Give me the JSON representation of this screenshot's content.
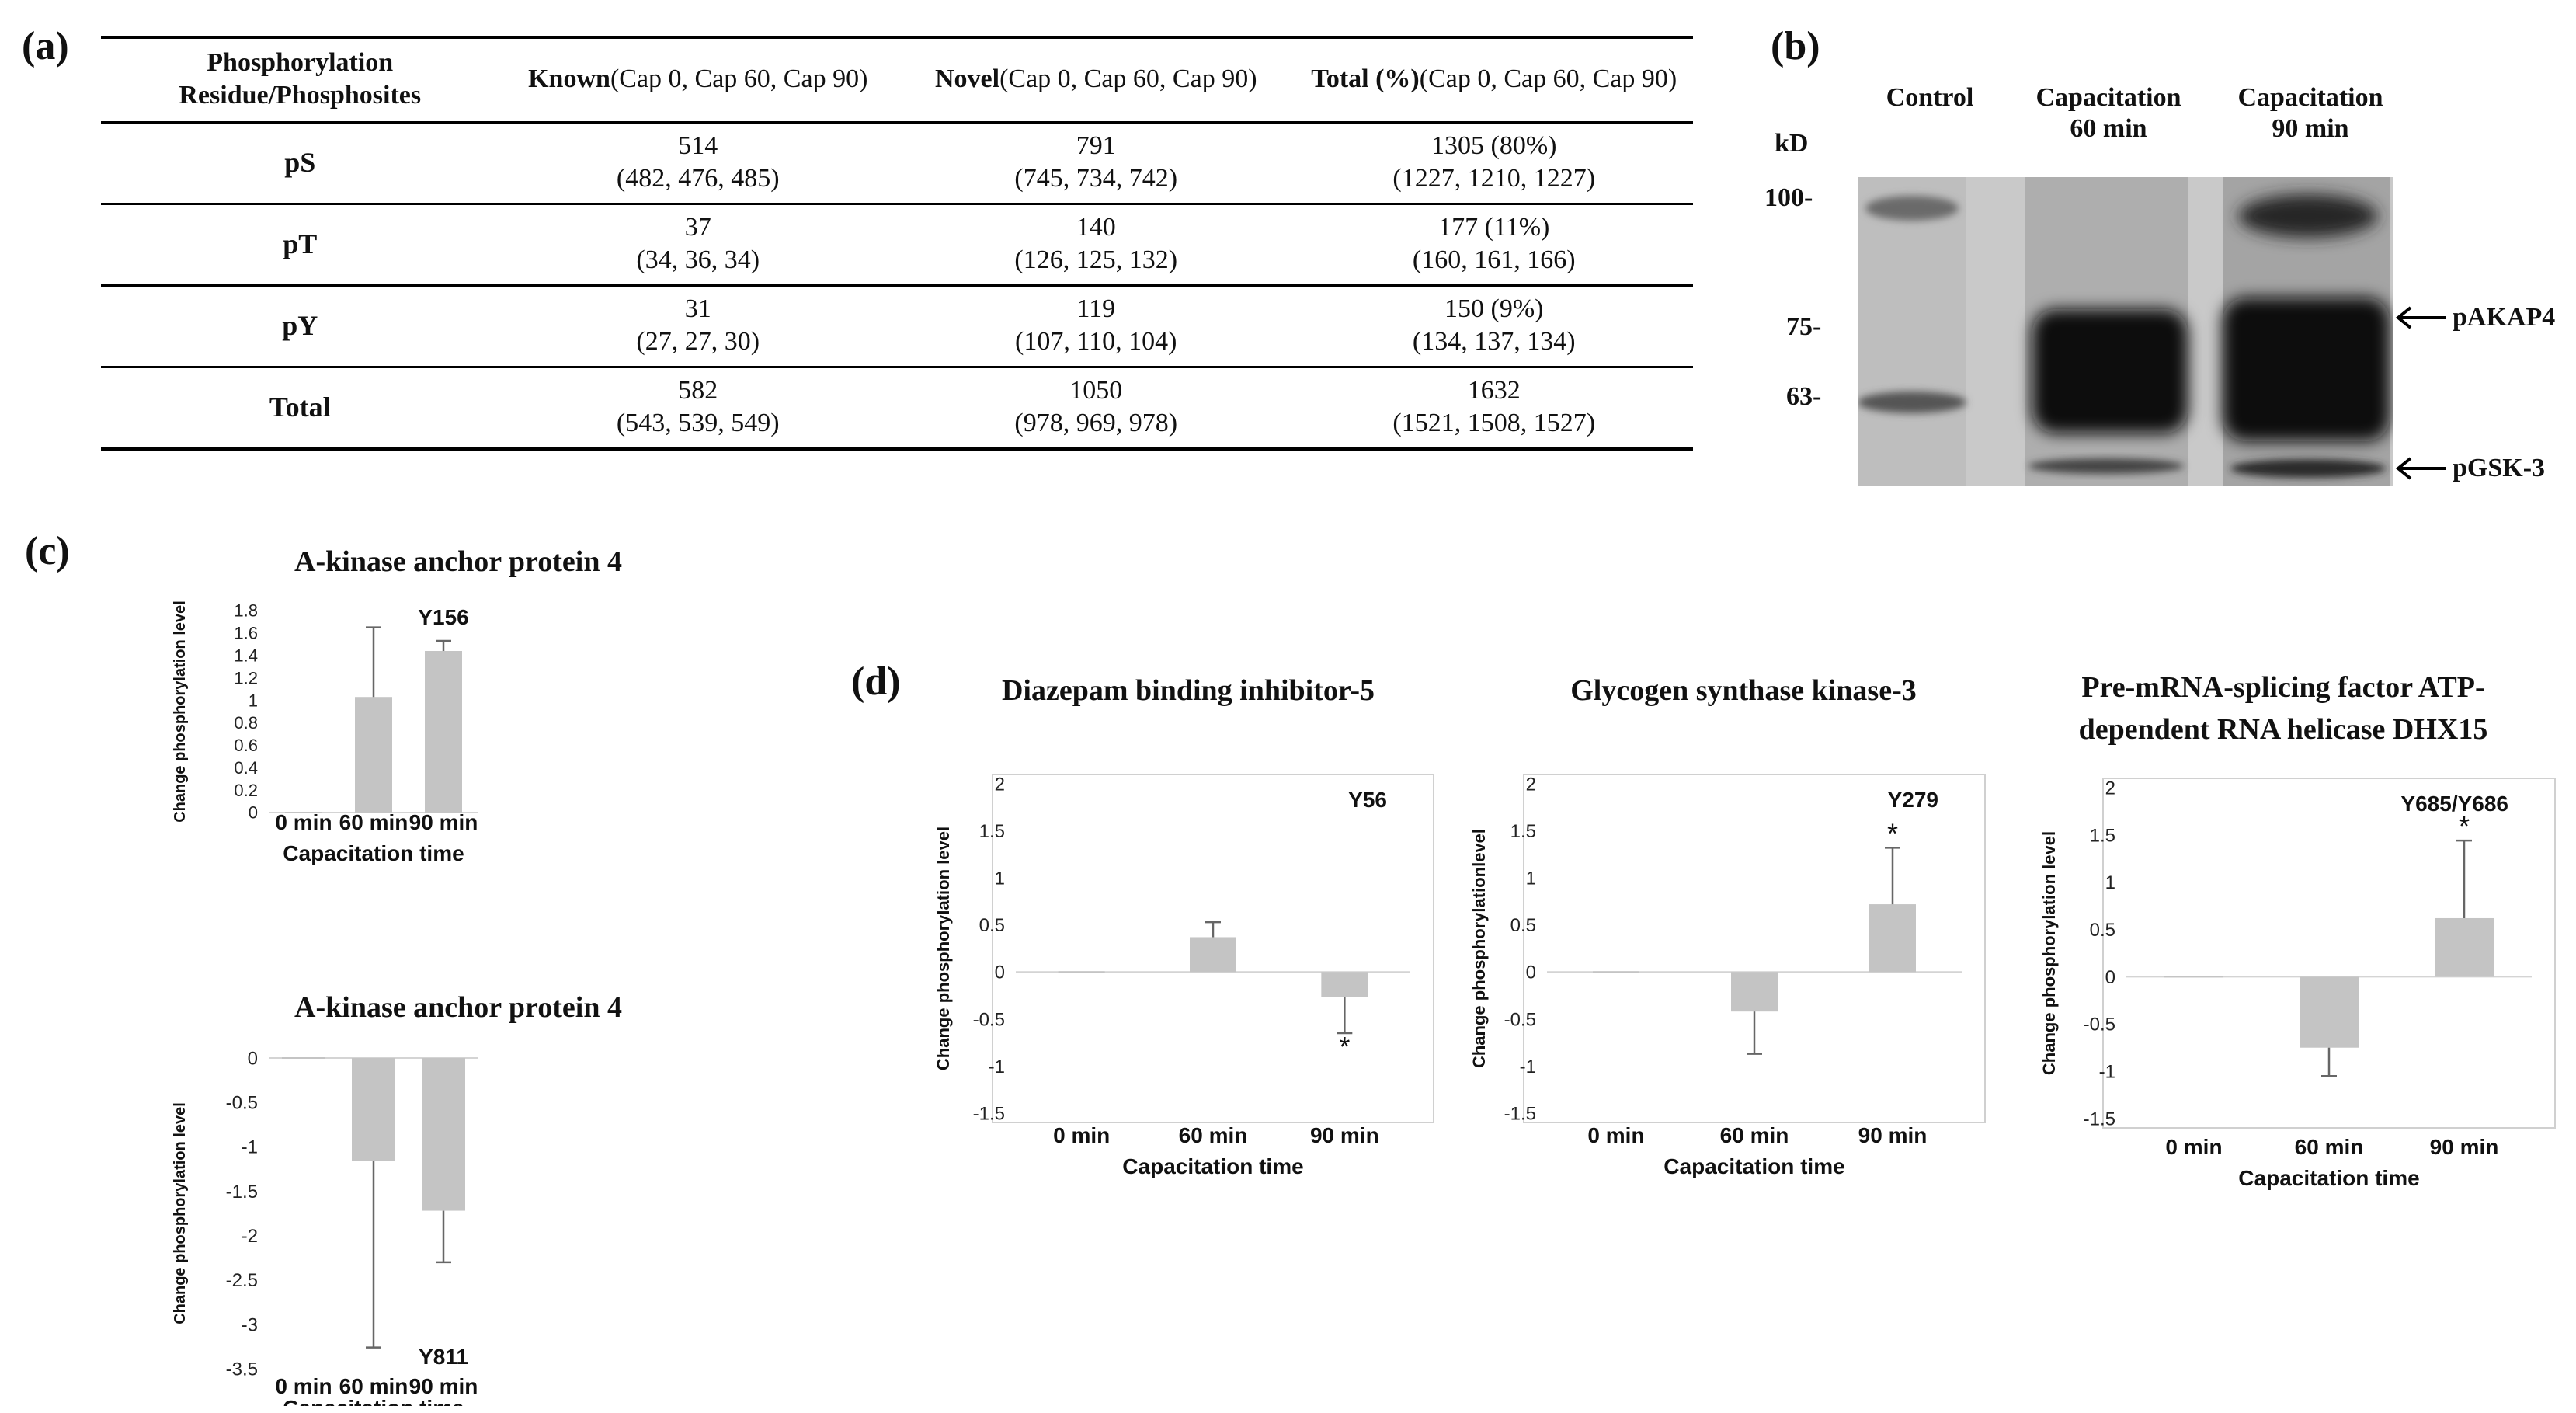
{
  "panels": {
    "a": "(a)",
    "b": "(b)",
    "c": "(c)",
    "d": "(d)"
  },
  "table": {
    "headers": [
      [
        "Phosphorylation Residue/",
        "Phosphosites"
      ],
      [
        "Known",
        "(Cap 0, Cap 60, Cap 90)"
      ],
      [
        "Novel",
        "(Cap 0, Cap 60, Cap 90)"
      ],
      [
        "Total (%)",
        "(Cap 0, Cap 60, Cap 90)"
      ]
    ],
    "rows": [
      {
        "label": "pS",
        "known": [
          "514",
          "(482, 476, 485)"
        ],
        "novel": [
          "791",
          "(745, 734, 742)"
        ],
        "total": [
          "1305 (80%)",
          "(1227, 1210, 1227)"
        ]
      },
      {
        "label": "pT",
        "known": [
          "37",
          "(34, 36, 34)"
        ],
        "novel": [
          "140",
          "(126, 125, 132)"
        ],
        "total": [
          "177 (11%)",
          "(160, 161, 166)"
        ]
      },
      {
        "label": "pY",
        "known": [
          "31",
          "(27, 27, 30)"
        ],
        "novel": [
          "119",
          "(107, 110, 104)"
        ],
        "total": [
          "150 (9%)",
          "(134, 137, 134)"
        ]
      },
      {
        "label": "Total",
        "known": [
          "582",
          "(543, 539, 549)"
        ],
        "novel": [
          "1050",
          "(978, 969, 978)"
        ],
        "total": [
          "1632",
          "(1521, 1508, 1527)"
        ]
      }
    ]
  },
  "blot": {
    "lanes": [
      [
        "Control"
      ],
      [
        "Capacitation",
        "60 min"
      ],
      [
        "Capacitation",
        "90 min"
      ]
    ],
    "unit": "kD",
    "markers": [
      "100-",
      "75-",
      "63-"
    ],
    "bands": [
      "pAKAP4",
      "pGSK-3"
    ],
    "colors": {
      "background": "#c9c9c9",
      "band": "#0f0f0f"
    }
  },
  "chart_data": [
    {
      "id": "c1",
      "type": "bar",
      "title": "A-kinase anchor protein 4",
      "categories": [
        "0 min",
        "60 min",
        "90 min"
      ],
      "values": [
        0,
        1.03,
        1.44
      ],
      "errors": [
        0,
        0.62,
        0.09
      ],
      "xlabel": "Capacitation time",
      "ylabel": "Change phosphorylation level",
      "ylim": [
        0,
        1.8
      ],
      "ticks": [
        "0",
        "0.2",
        "0.4",
        "0.6",
        "0.8",
        "1",
        "1.2",
        "1.4",
        "1.6",
        "1.8"
      ],
      "site": "Y156",
      "stars": [],
      "bar_color": "#c4c4c4"
    },
    {
      "id": "c2",
      "type": "bar",
      "title": "A-kinase anchor protein 4",
      "categories": [
        "0 min",
        "60 min",
        "90 min"
      ],
      "values": [
        0,
        -1.16,
        -1.72
      ],
      "errors": [
        0,
        2.1,
        0.58
      ],
      "xlabel": "Capacitation time",
      "ylabel": "Change phosphorylation level",
      "ylim": [
        -3.5,
        0
      ],
      "ticks": [
        "0",
        "-0.5",
        "-1",
        "-1.5",
        "-2",
        "-2.5",
        "-3",
        "-3.5"
      ],
      "site": "Y811",
      "stars": [],
      "bar_color": "#c4c4c4"
    },
    {
      "id": "d1",
      "type": "bar",
      "title": "Diazepam binding inhibitor-5",
      "categories": [
        "0 min",
        "60 min",
        "90 min"
      ],
      "values": [
        0,
        0.37,
        -0.27
      ],
      "errors": [
        0,
        0.16,
        0.38
      ],
      "xlabel": "Capacitation time",
      "ylabel": "Change phosphorylation level",
      "ylim": [
        -1.5,
        2
      ],
      "ticks": [
        "2",
        "1.5",
        "1",
        "0.5",
        "0",
        "-0.5",
        "-1",
        "-1.5"
      ],
      "site": "Y56",
      "stars": [
        "",
        "",
        "*"
      ],
      "bar_color": "#c4c4c4"
    },
    {
      "id": "d2",
      "type": "bar",
      "title": "Glycogen synthase kinase-3",
      "categories": [
        "0 min",
        "60 min",
        "90 min"
      ],
      "values": [
        0,
        -0.42,
        0.72
      ],
      "errors": [
        0,
        0.45,
        0.6
      ],
      "xlabel": "Capacitation time",
      "ylabel": "Change phosphorylationlevel",
      "ylim": [
        -1.5,
        2
      ],
      "ticks": [
        "2",
        "1.5",
        "1",
        "0.5",
        "0",
        "-0.5",
        "-1",
        "-1.5"
      ],
      "site": "Y279",
      "stars": [
        "",
        "",
        "*"
      ],
      "bar_color": "#c4c4c4"
    },
    {
      "id": "d3",
      "type": "bar",
      "title": "Pre-mRNA-splicing factor ATP-dependent RNA helicase DHX15",
      "title_lines": [
        "Pre-mRNA-splicing factor ATP-",
        "dependent RNA helicase DHX15"
      ],
      "categories": [
        "0 min",
        "60 min",
        "90 min"
      ],
      "values": [
        0,
        -0.75,
        0.62
      ],
      "errors": [
        0,
        0.3,
        0.82
      ],
      "xlabel": "Capacitation time",
      "ylabel": "Change phosphorylation level",
      "ylim": [
        -1.5,
        2
      ],
      "ticks": [
        "2",
        "1.5",
        "1",
        "0.5",
        "0",
        "-0.5",
        "-1",
        "-1.5"
      ],
      "site": "Y685/Y686",
      "stars": [
        "",
        "",
        "*"
      ],
      "bar_color": "#c4c4c4"
    }
  ]
}
